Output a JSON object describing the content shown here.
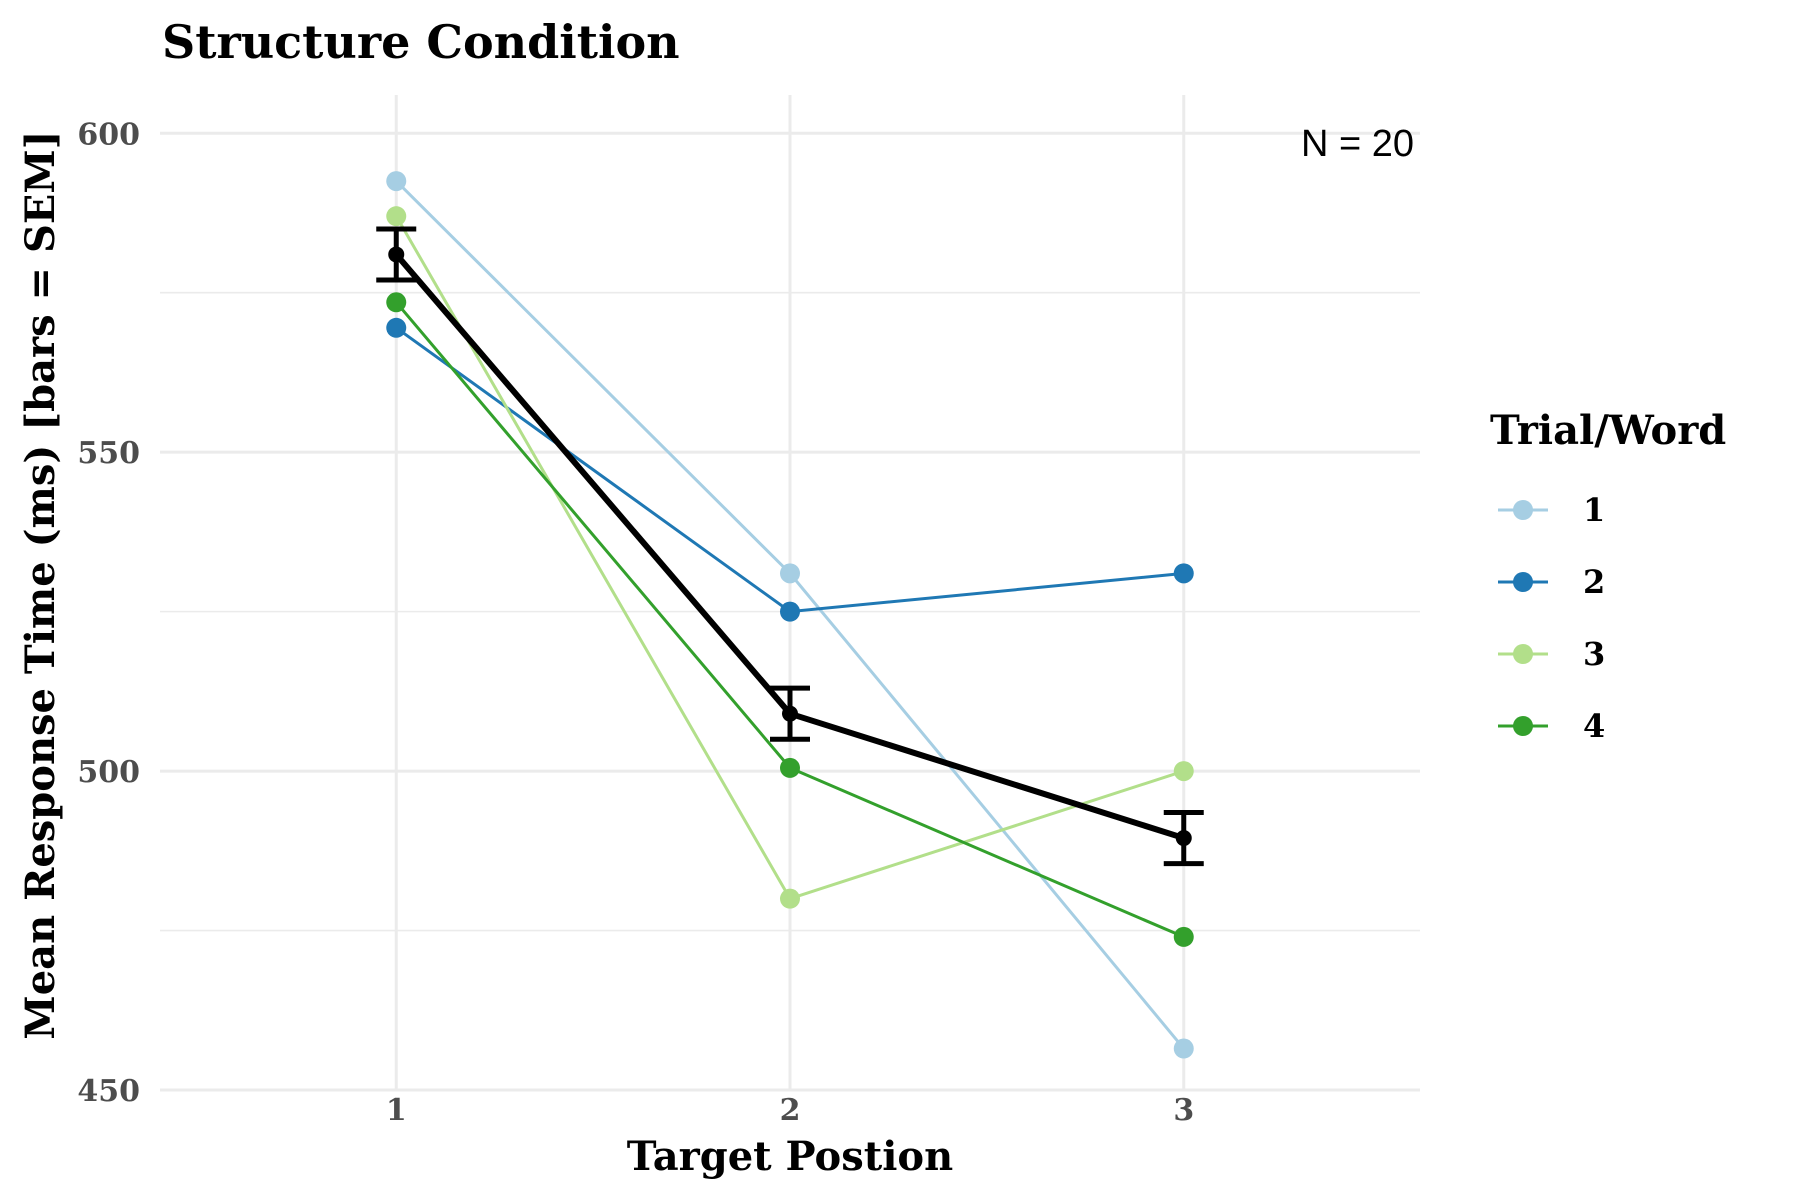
{
  "chart_data": {
    "type": "line",
    "title": "Structure Condition",
    "xlabel": "Target Postion",
    "ylabel": "Mean Response Time (ms) [bars = SEM]",
    "annotation": "N = 20",
    "x": [
      1,
      2,
      3
    ],
    "xlim": [
      0.4,
      3.6
    ],
    "ylim": [
      450,
      606
    ],
    "yticks": [
      450,
      500,
      550,
      600
    ],
    "xticks": [
      1,
      2,
      3
    ],
    "grid": true,
    "legend": {
      "title": "Trial/Word",
      "position": "right"
    },
    "series": [
      {
        "name": "1",
        "color": "#A6CEE3",
        "values": [
          592.5,
          531,
          456.5
        ]
      },
      {
        "name": "2",
        "color": "#1F78B4",
        "values": [
          569.5,
          525,
          531
        ]
      },
      {
        "name": "3",
        "color": "#B2DF8A",
        "values": [
          587,
          480,
          500
        ]
      },
      {
        "name": "4",
        "color": "#33A02C",
        "values": [
          573.5,
          500.5,
          474
        ]
      }
    ],
    "mean_series": {
      "color": "#000000",
      "values": [
        581,
        509,
        489.5
      ],
      "sem": [
        4,
        4,
        4
      ]
    }
  }
}
